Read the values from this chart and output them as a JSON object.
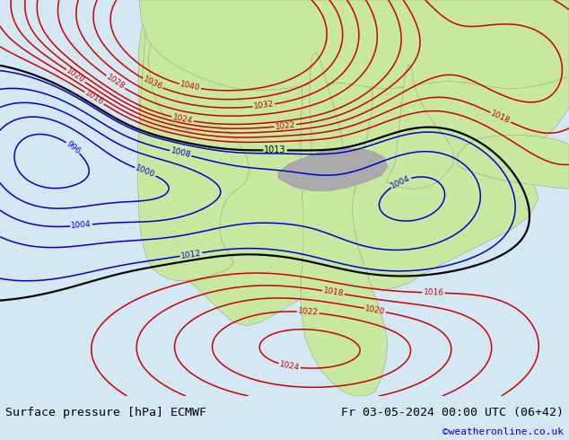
{
  "title_left": "Surface pressure [hPa] ECMWF",
  "title_right": "Fr 03-05-2024 00:00 UTC (06+42)",
  "credit": "©weatheronline.co.uk",
  "bg_color": "#d4e8f4",
  "land_color": "#c8e8a0",
  "mountain_color": "#aaaaaa",
  "figsize": [
    6.34,
    4.9
  ],
  "dpi": 100,
  "bottom_bar_color": "#e0e0e0",
  "credit_color": "#0000cc",
  "title_fontsize": 9.5,
  "credit_fontsize": 8.0,
  "red": "#cc0000",
  "blue": "#0000cc",
  "black": "#000000",
  "label_fontsize": 6.5
}
